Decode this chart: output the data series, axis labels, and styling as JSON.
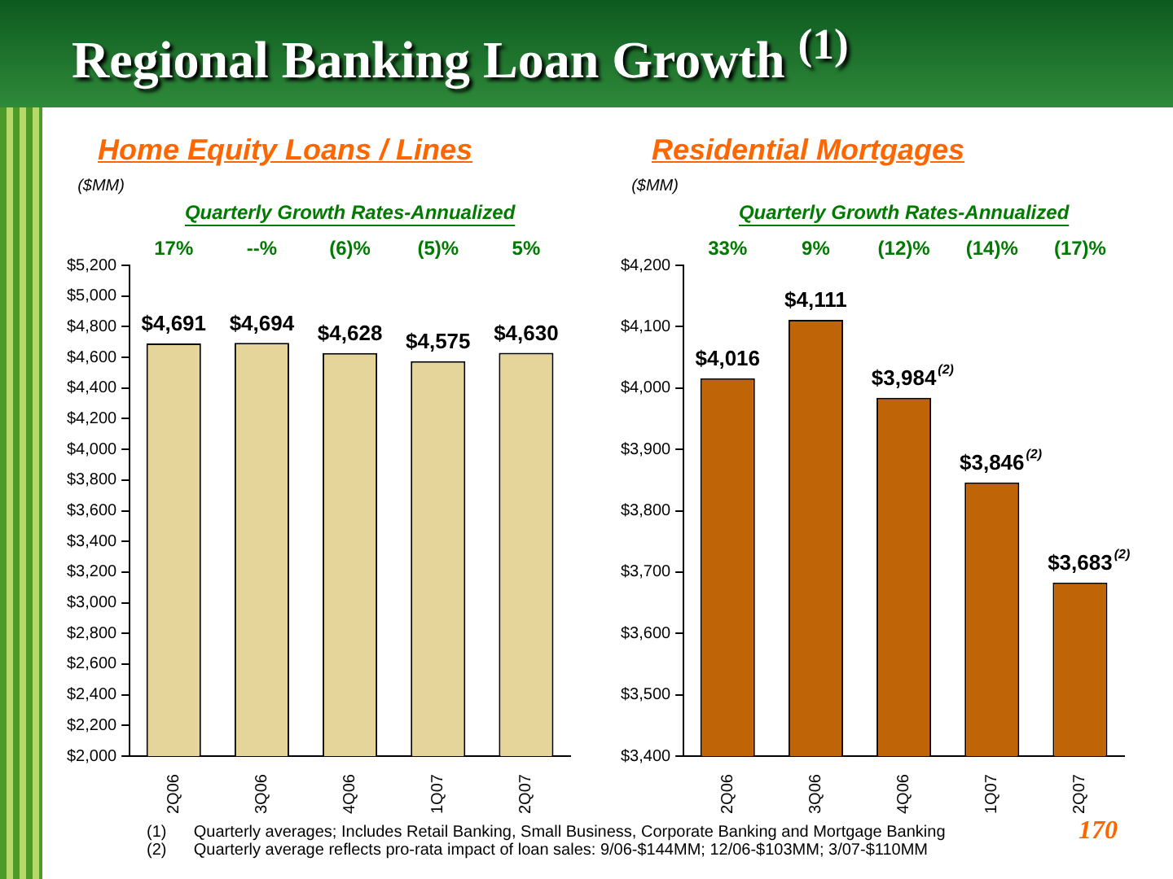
{
  "chart_data": [
    {
      "type": "bar",
      "title": "Home Equity Loans / Lines",
      "subtitle": "Quarterly Growth Rates-Annualized",
      "ylabel": "($MM)",
      "categories": [
        "2Q06",
        "3Q06",
        "4Q06",
        "1Q07",
        "2Q07"
      ],
      "values": [
        4691,
        4694,
        4628,
        4575,
        4630
      ],
      "color": "#e6d59a",
      "value_labels": [
        "$4,691",
        "$4,694",
        "$4,628",
        "$4,575",
        "$4,630"
      ],
      "ylim": [
        2000,
        5200
      ],
      "yticks": [
        {
          "value": 2000,
          "label": "$2,000"
        },
        {
          "value": 2200,
          "label": "$2,200"
        },
        {
          "value": 2400,
          "label": "$2,400"
        },
        {
          "value": 2600,
          "label": "$2,600"
        },
        {
          "value": 2800,
          "label": "$2,800"
        },
        {
          "value": 3000,
          "label": "$3,000"
        },
        {
          "value": 3200,
          "label": "$3,200"
        },
        {
          "value": 3400,
          "label": "$3,400"
        },
        {
          "value": 3600,
          "label": "$3,600"
        },
        {
          "value": 3800,
          "label": "$3,800"
        },
        {
          "value": 4000,
          "label": "$4,000"
        },
        {
          "value": 4200,
          "label": "$4,200"
        },
        {
          "value": 4400,
          "label": "$4,400"
        },
        {
          "value": 4600,
          "label": "$4,600"
        },
        {
          "value": 4800,
          "label": "$4,800"
        },
        {
          "value": 5000,
          "label": "$5,000"
        },
        {
          "value": 5200,
          "label": "$5,200"
        }
      ],
      "grid": false,
      "legend": false,
      "annotations": [
        "17%",
        "--%",
        "(6)%",
        "(5)%",
        "5%"
      ]
    },
    {
      "type": "bar",
      "title": "Residential Mortgages",
      "subtitle": "Quarterly Growth Rates-Annualized",
      "ylabel": "($MM)",
      "categories": [
        "2Q06",
        "3Q06",
        "4Q06",
        "1Q07",
        "2Q07"
      ],
      "values": [
        4016,
        4111,
        3984,
        3846,
        3683
      ],
      "color": "#c06408",
      "value_labels": [
        "$4,016",
        "$4,111",
        "$3,984$^{(2)}$",
        "$3,846$^{(2)}$",
        "$3,683$^{(2)}$"
      ],
      "ylim": [
        3400,
        4200
      ],
      "yticks": [
        {
          "value": 3400,
          "label": "$3,400"
        },
        {
          "value": 3500,
          "label": "$3,500"
        },
        {
          "value": 3600,
          "label": "$3,600"
        },
        {
          "value": 3700,
          "label": "$3,700"
        },
        {
          "value": 3800,
          "label": "$3,800"
        },
        {
          "value": 3900,
          "label": "$3,900"
        },
        {
          "value": 4000,
          "label": "$4,000"
        },
        {
          "value": 4100,
          "label": "$4,100"
        },
        {
          "value": 4200,
          "label": "$4,200"
        }
      ],
      "grid": false,
      "legend": false,
      "annotations": [
        "33%",
        "9%",
        "(12)%",
        "(14)%",
        "(17)%",
        "Regional Banking Loan Growth $^{(1)}$",
        "(1)      Quarterly averages; Includes Retail Banking, Small Business, Corporate Banking and Mortgage Banking",
        "(2)      Quarterly average reflects pro-rata impact of loan sales: 9/06-$144MM; 12/06-$103MM; 3/07-$110MM",
        "170"
      ]
    }
  ]
}
